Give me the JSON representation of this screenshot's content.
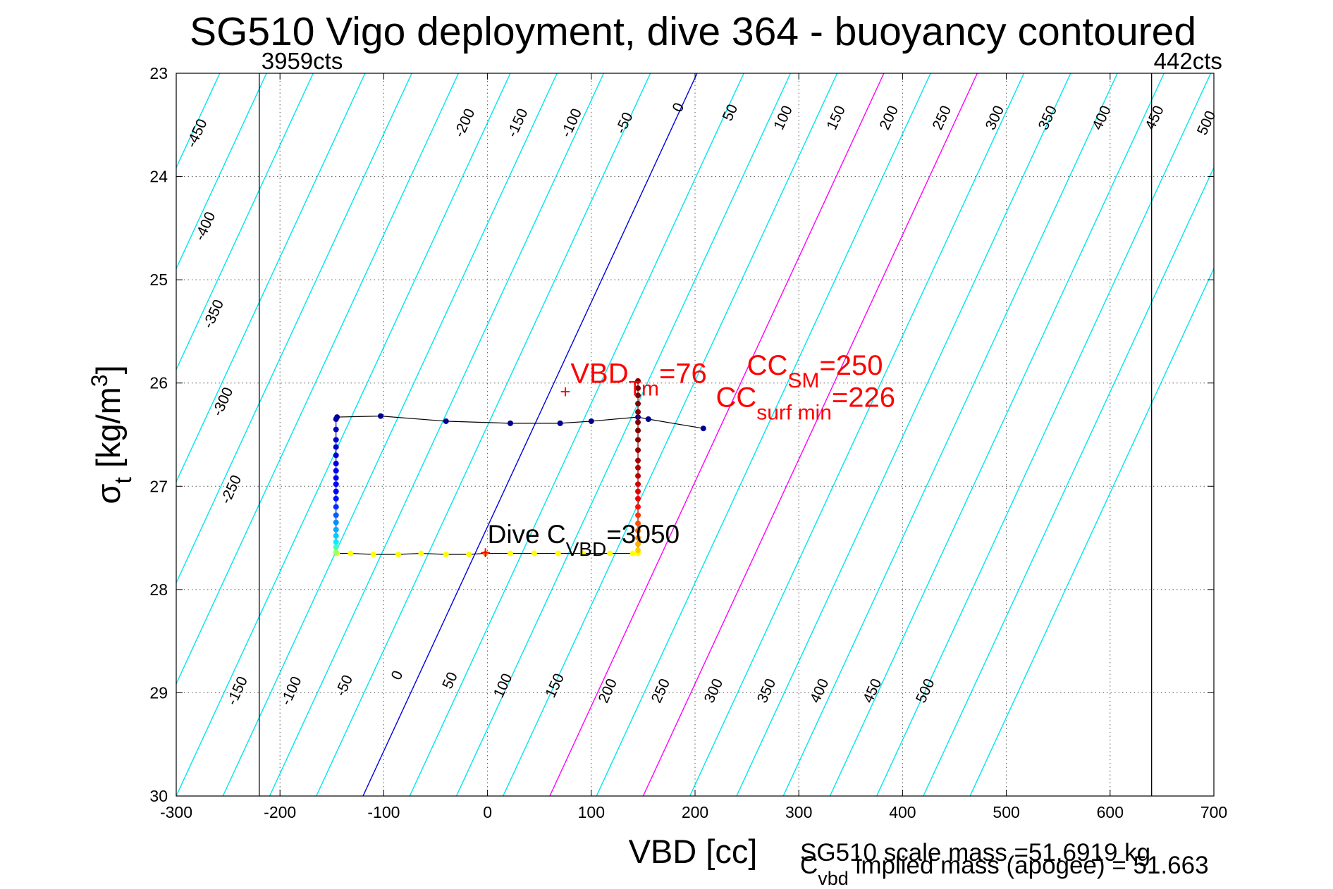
{
  "chart_data": {
    "type": "line",
    "title": "SG510 Vigo deployment, dive 364 - buoyancy contoured",
    "xlabel": "VBD [cc]",
    "ylabel": {
      "main": "σ",
      "sub": "t",
      "unit_pre": " [kg/m",
      "unit_sup": "3",
      "unit_post": "]"
    },
    "xlim": [
      -300,
      700
    ],
    "ylim": [
      23,
      30
    ],
    "y_reversed": true,
    "grid": true,
    "xticks": [
      -300,
      -200,
      -100,
      0,
      100,
      200,
      300,
      400,
      500,
      600,
      700
    ],
    "yticks": [
      23,
      24,
      25,
      26,
      27,
      28,
      29,
      30
    ],
    "xtick_labels": [
      "-300",
      "-200",
      "-100",
      "0",
      "100",
      "200",
      "300",
      "400",
      "500",
      "600",
      "700"
    ],
    "ytick_labels": [
      "23",
      "24",
      "25",
      "26",
      "27",
      "28",
      "29",
      "30"
    ],
    "vlines": [
      {
        "x": -220,
        "label": "3959cts",
        "color": "#000000"
      },
      {
        "x": 640,
        "label": "442cts",
        "color": "#000000"
      }
    ],
    "contours": {
      "slope_cc_per_sigma": 46,
      "x_at_sigma_30": [
        -625,
        -580,
        -535,
        -490,
        -440,
        -395,
        -350,
        -300,
        -255,
        -210,
        -165,
        -120,
        -75,
        -30,
        15,
        60,
        105,
        150,
        195,
        240,
        285,
        330,
        375,
        420,
        465
      ],
      "blue_index": 11,
      "magenta_indices": [
        15,
        17
      ],
      "colors": {
        "default": "#00e5ee",
        "blue": "#0000dd",
        "magenta": "#ff00ff"
      },
      "top_labels": [
        {
          "text": "-450",
          "x": -276,
          "y": 23.6
        },
        {
          "text": "-400",
          "x": -268,
          "y": 24.5
        },
        {
          "text": "-350",
          "x": -260,
          "y": 25.35
        },
        {
          "text": "-300",
          "x": -251,
          "y": 26.2
        },
        {
          "text": "-250",
          "x": -243,
          "y": 27.05
        },
        {
          "text": "-200",
          "x": -18,
          "y": 23.5
        },
        {
          "text": "-150",
          "x": 33,
          "y": 23.5
        },
        {
          "text": "-100",
          "x": 85,
          "y": 23.5
        },
        {
          "text": "-50",
          "x": 136,
          "y": 23.5
        },
        {
          "text": "0",
          "x": 188,
          "y": 23.35
        },
        {
          "text": "50",
          "x": 238,
          "y": 23.4
        },
        {
          "text": "100",
          "x": 289,
          "y": 23.45
        },
        {
          "text": "150",
          "x": 340,
          "y": 23.45
        },
        {
          "text": "200",
          "x": 391,
          "y": 23.45
        },
        {
          "text": "250",
          "x": 442,
          "y": 23.45
        },
        {
          "text": "300",
          "x": 493,
          "y": 23.45
        },
        {
          "text": "350",
          "x": 544,
          "y": 23.45
        },
        {
          "text": "400",
          "x": 596,
          "y": 23.45
        },
        {
          "text": "450",
          "x": 647,
          "y": 23.45
        },
        {
          "text": "500",
          "x": 697,
          "y": 23.5
        }
      ],
      "bottom_labels": [
        {
          "text": "-150",
          "x": -237,
          "y": 29.0
        },
        {
          "text": "-100",
          "x": -185,
          "y": 29.0
        },
        {
          "text": "-50",
          "x": -134,
          "y": 28.95
        },
        {
          "text": "0",
          "x": -83,
          "y": 28.85
        },
        {
          "text": "50",
          "x": -32,
          "y": 28.9
        },
        {
          "text": "100",
          "x": 19,
          "y": 28.95
        },
        {
          "text": "150",
          "x": 69,
          "y": 28.95
        },
        {
          "text": "200",
          "x": 120,
          "y": 29.0
        },
        {
          "text": "250",
          "x": 171,
          "y": 29.0
        },
        {
          "text": "300",
          "x": 222,
          "y": 29.0
        },
        {
          "text": "350",
          "x": 273,
          "y": 29.0
        },
        {
          "text": "400",
          "x": 324,
          "y": 29.0
        },
        {
          "text": "450",
          "x": 375,
          "y": 29.0
        },
        {
          "text": "500",
          "x": 426,
          "y": 29.0
        }
      ]
    },
    "series": [
      {
        "name": "",
        "color": "#000000",
        "x": [
          -145,
          -103,
          -40,
          22,
          70,
          100,
          145,
          155,
          208
        ],
        "y": [
          26.33,
          26.32,
          26.37,
          26.39,
          26.39,
          26.37,
          26.33,
          26.35,
          26.44
        ],
        "point_colors": [
          "#00008f",
          "#00008f",
          "#00008f",
          "#00008f",
          "#00008f",
          "#00008f",
          "#00008f",
          "#00008f",
          "#00008f"
        ]
      },
      {
        "name": "",
        "color": "#000000",
        "x": [
          -145,
          -132,
          -110,
          -86,
          -64,
          -40,
          -18,
          -2,
          22,
          45,
          68,
          92,
          118,
          140,
          145
        ],
        "y": [
          27.65,
          27.65,
          27.66,
          27.66,
          27.65,
          27.66,
          27.66,
          27.65,
          27.65,
          27.65,
          27.65,
          27.65,
          27.65,
          27.65,
          27.65
        ],
        "point_colors": [
          "#ffff00",
          "#ffff00",
          "#ffff00",
          "#ffff00",
          "#ffff00",
          "#ffff00",
          "#ffff00",
          "#ff8c00",
          "#ffff00",
          "#ffff00",
          "#ffff00",
          "#ffff00",
          "#ffff00",
          "#ffff00",
          "#ffff00"
        ]
      },
      {
        "name": "",
        "color": "#0000cc",
        "x": [
          -146,
          -146,
          -146,
          -146,
          -146,
          -146,
          -146,
          -146,
          -146,
          -146,
          -146,
          -146,
          -146,
          -146,
          -146,
          -146,
          -146,
          -146,
          -146
        ],
        "y": [
          26.35,
          26.45,
          26.55,
          26.62,
          26.7,
          26.78,
          26.85,
          26.92,
          26.98,
          27.05,
          27.12,
          27.2,
          27.28,
          27.35,
          27.42,
          27.48,
          27.54,
          27.59,
          27.64
        ],
        "point_colors": [
          "#0000aa",
          "#0000bb",
          "#0000cc",
          "#0000cc",
          "#0000dd",
          "#0000dd",
          "#0000ee",
          "#0000ee",
          "#0000ff",
          "#0000ff",
          "#0010ff",
          "#0030ff",
          "#0060ff",
          "#0090ff",
          "#00b0ff",
          "#00d0ff",
          "#00f0ff",
          "#40ffbf",
          "#a0ff60"
        ]
      },
      {
        "name": "",
        "color": "#880000",
        "x": [
          145,
          145,
          145,
          145,
          145,
          145,
          145,
          145,
          145,
          145,
          145,
          145,
          145,
          145,
          145,
          145,
          145,
          145,
          145,
          145,
          145,
          145
        ],
        "y": [
          25.98,
          26.05,
          26.12,
          26.2,
          26.28,
          26.38,
          26.46,
          26.55,
          26.65,
          26.75,
          26.82,
          26.9,
          26.98,
          27.05,
          27.12,
          27.2,
          27.28,
          27.36,
          27.43,
          27.5,
          27.56,
          27.62
        ],
        "point_colors": [
          "#800000",
          "#800000",
          "#800000",
          "#800000",
          "#800000",
          "#800000",
          "#800000",
          "#880000",
          "#900000",
          "#a00000",
          "#b00000",
          "#c00000",
          "#d00000",
          "#e00000",
          "#f00000",
          "#ff1000",
          "#ff3000",
          "#ff5000",
          "#ff7000",
          "#ff9000",
          "#ffb000",
          "#ffd000"
        ]
      }
    ],
    "markers": [
      {
        "x": 75,
        "y": 26.09,
        "color": "#ff0000",
        "symbol": "+"
      },
      {
        "x": -2,
        "y": 27.65,
        "color": "#ff0000",
        "symbol": "+"
      }
    ],
    "annotations": {
      "vbd_tm": {
        "main": "VBD",
        "sub": "Tm",
        "value": "=76",
        "x": 80,
        "y": 26.0,
        "color": "#ff0000"
      },
      "cc_sm": {
        "main": "CC",
        "sub": "SM",
        "value": "=250",
        "x": 250,
        "y": 25.92,
        "color": "#ff0000"
      },
      "cc_surf": {
        "main": "CC",
        "sub": "surf min",
        "value": "=226",
        "x": 220,
        "y": 26.23,
        "color": "#ff0000"
      },
      "dive_cvbd": {
        "main": "Dive C",
        "sub": "VBD",
        "value": "=3050",
        "x": 0,
        "y": 27.55,
        "color": "#000000"
      }
    },
    "footnotes": {
      "scale_mass": "SG510 scale mass =51.6919 kg",
      "cvbd_main": "C",
      "cvbd_sub": "vbd",
      "cvbd_rest": " implied mass (apogee) = 51.663"
    }
  }
}
